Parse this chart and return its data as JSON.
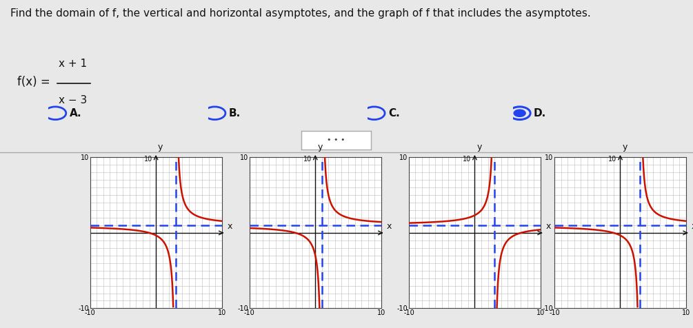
{
  "title": "Find the domain of f, the vertical and horizontal asymptotes, and the graph of f that includes the asymptotes.",
  "f_left": "f(x) =",
  "f_num": "x + 1",
  "f_den": "x − 3",
  "options": [
    "A.",
    "B.",
    "C.",
    "D."
  ],
  "selected_idx": 3,
  "graphs": [
    {
      "vert_asym": 3,
      "horiz_asym": 1,
      "k": 4
    },
    {
      "vert_asym": 1,
      "horiz_asym": 1,
      "k": 4
    },
    {
      "vert_asym": 3,
      "horiz_asym": 1,
      "k": -4
    },
    {
      "vert_asym": 3,
      "horiz_asym": 1,
      "k": 4
    }
  ],
  "xlim": [
    -10,
    10
  ],
  "ylim": [
    -10,
    10
  ],
  "grid_color": "#bbbbbb",
  "asym_color": "#2244ee",
  "curve_color": "#cc1100",
  "bg_color": "#e8e8e8",
  "panel_bg": "#ffffff",
  "radio_color": "#2244ee",
  "text_color": "#111111",
  "sep_color": "#aaaaaa",
  "title_fontsize": 11,
  "option_fontsize": 11,
  "tick_fontsize": 7,
  "axis_label_fontsize": 9
}
